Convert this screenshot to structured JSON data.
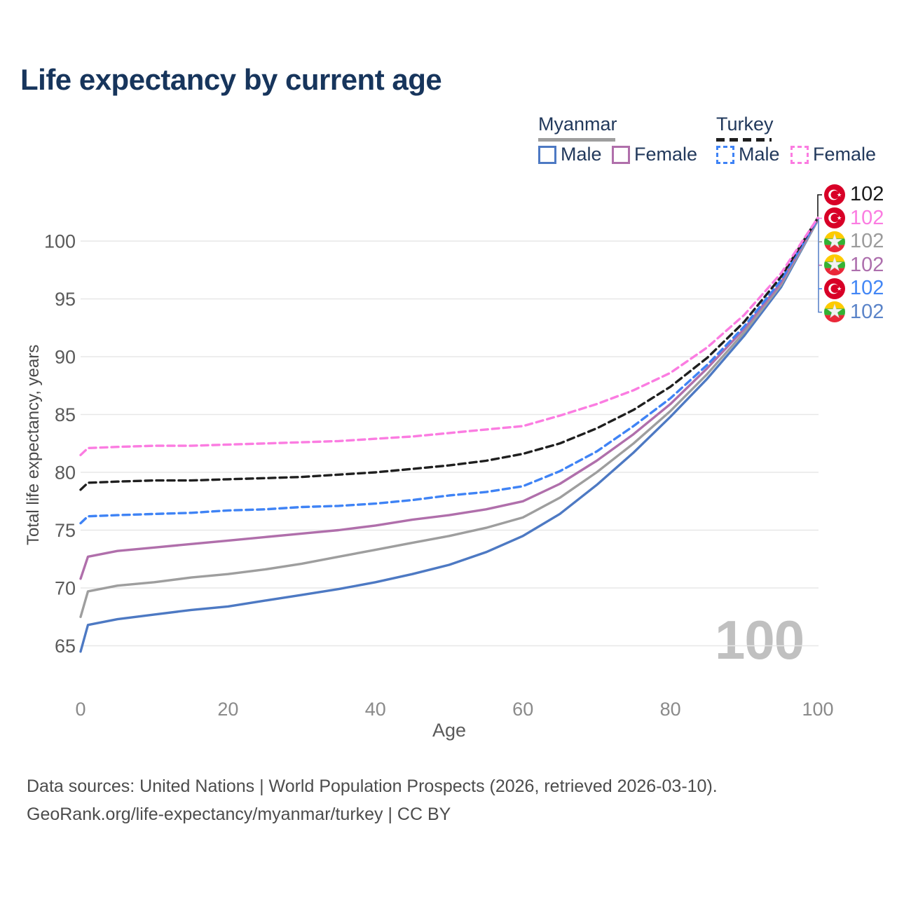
{
  "title": "Life expectancy by current age",
  "legend": {
    "groups": [
      {
        "label": "Myanmar",
        "line_style": "solid",
        "underline_color": "#9e9e9e",
        "items": [
          {
            "label": "Male",
            "color": "#4d79c3"
          },
          {
            "label": "Female",
            "color": "#b06fab"
          }
        ]
      },
      {
        "label": "Turkey",
        "line_style": "dashed",
        "underline_color": "#1f1f1f",
        "items": [
          {
            "label": "Male",
            "color": "#3f83f5"
          },
          {
            "label": "Female",
            "color": "#fb7ce1"
          }
        ]
      }
    ]
  },
  "chart_data": {
    "type": "line",
    "title": "Life expectancy by current age",
    "xlabel": "Age",
    "ylabel": "Total life expectancy, years",
    "xlim": [
      0,
      100
    ],
    "ylim": [
      63.5,
      103
    ],
    "x_ticks": [
      0,
      20,
      40,
      60,
      80,
      100
    ],
    "y_ticks": [
      65,
      70,
      75,
      80,
      85,
      90,
      95,
      100
    ],
    "grid": "horizontal",
    "age_watermark": "100",
    "x": [
      0,
      1,
      5,
      10,
      15,
      20,
      25,
      30,
      35,
      40,
      45,
      50,
      55,
      60,
      65,
      70,
      75,
      80,
      85,
      90,
      95,
      100
    ],
    "series": [
      {
        "id": "myanmar-male",
        "name": "Myanmar Male",
        "country": "Myanmar",
        "sex": "Male",
        "color": "#4d79c3",
        "dashed": false,
        "values": [
          64.5,
          66.8,
          67.3,
          67.7,
          68.1,
          68.4,
          68.9,
          69.4,
          69.9,
          70.5,
          71.2,
          72.0,
          73.1,
          74.5,
          76.4,
          78.9,
          81.7,
          84.8,
          88.1,
          91.8,
          96.0,
          101.8
        ]
      },
      {
        "id": "myanmar-total",
        "name": "Myanmar",
        "country": "Myanmar",
        "sex": "Total",
        "color": "#9e9e9e",
        "dashed": false,
        "values": [
          67.5,
          69.7,
          70.2,
          70.5,
          70.9,
          71.2,
          71.6,
          72.1,
          72.7,
          73.3,
          73.9,
          74.5,
          75.2,
          76.1,
          77.8,
          80.0,
          82.5,
          85.3,
          88.5,
          92.1,
          96.2,
          101.8
        ]
      },
      {
        "id": "myanmar-female",
        "name": "Myanmar Female",
        "country": "Myanmar",
        "sex": "Female",
        "color": "#b06fab",
        "dashed": false,
        "values": [
          70.8,
          72.7,
          73.2,
          73.5,
          73.8,
          74.1,
          74.4,
          74.7,
          75.0,
          75.4,
          75.9,
          76.3,
          76.8,
          77.5,
          79.0,
          81.0,
          83.3,
          85.9,
          89.0,
          92.4,
          96.4,
          101.9
        ]
      },
      {
        "id": "turkey-male",
        "name": "Turkey Male",
        "country": "Turkey",
        "sex": "Male",
        "color": "#3f83f5",
        "dashed": true,
        "values": [
          75.6,
          76.2,
          76.3,
          76.4,
          76.5,
          76.7,
          76.8,
          77.0,
          77.1,
          77.3,
          77.6,
          78.0,
          78.3,
          78.8,
          80.1,
          81.8,
          84.0,
          86.4,
          89.3,
          92.6,
          96.6,
          101.9
        ]
      },
      {
        "id": "turkey-total",
        "name": "Turkey",
        "country": "Turkey",
        "sex": "Total",
        "color": "#1f1f1f",
        "dashed": true,
        "values": [
          78.5,
          79.1,
          79.2,
          79.3,
          79.3,
          79.4,
          79.5,
          79.6,
          79.8,
          80.0,
          80.3,
          80.6,
          81.0,
          81.6,
          82.5,
          83.8,
          85.4,
          87.4,
          89.9,
          93.0,
          96.9,
          102.0
        ]
      },
      {
        "id": "turkey-female",
        "name": "Turkey Female",
        "country": "Turkey",
        "sex": "Female",
        "color": "#fb7ce1",
        "dashed": true,
        "values": [
          81.5,
          82.1,
          82.2,
          82.3,
          82.3,
          82.4,
          82.5,
          82.6,
          82.7,
          82.9,
          83.1,
          83.4,
          83.7,
          84.0,
          84.9,
          85.9,
          87.1,
          88.6,
          90.8,
          93.6,
          97.2,
          102.0
        ]
      }
    ],
    "end_labels": [
      {
        "flag": "turkey",
        "value": "102",
        "color": "#1a1a1a"
      },
      {
        "flag": "turkey",
        "value": "102",
        "color": "#fb7ce1"
      },
      {
        "flag": "myanmar",
        "value": "102",
        "color": "#9b9b9b"
      },
      {
        "flag": "myanmar",
        "value": "102",
        "color": "#ad6fad"
      },
      {
        "flag": "turkey",
        "value": "102",
        "color": "#4286f5"
      },
      {
        "flag": "myanmar",
        "value": "102",
        "color": "#5b84c9"
      }
    ]
  },
  "footer": {
    "line1": "Data sources: United Nations | World Population Prospects (2026, retrieved 2026-03-10).",
    "line2": "GeoRank.org/life-expectancy/myanmar/turkey | CC BY"
  }
}
